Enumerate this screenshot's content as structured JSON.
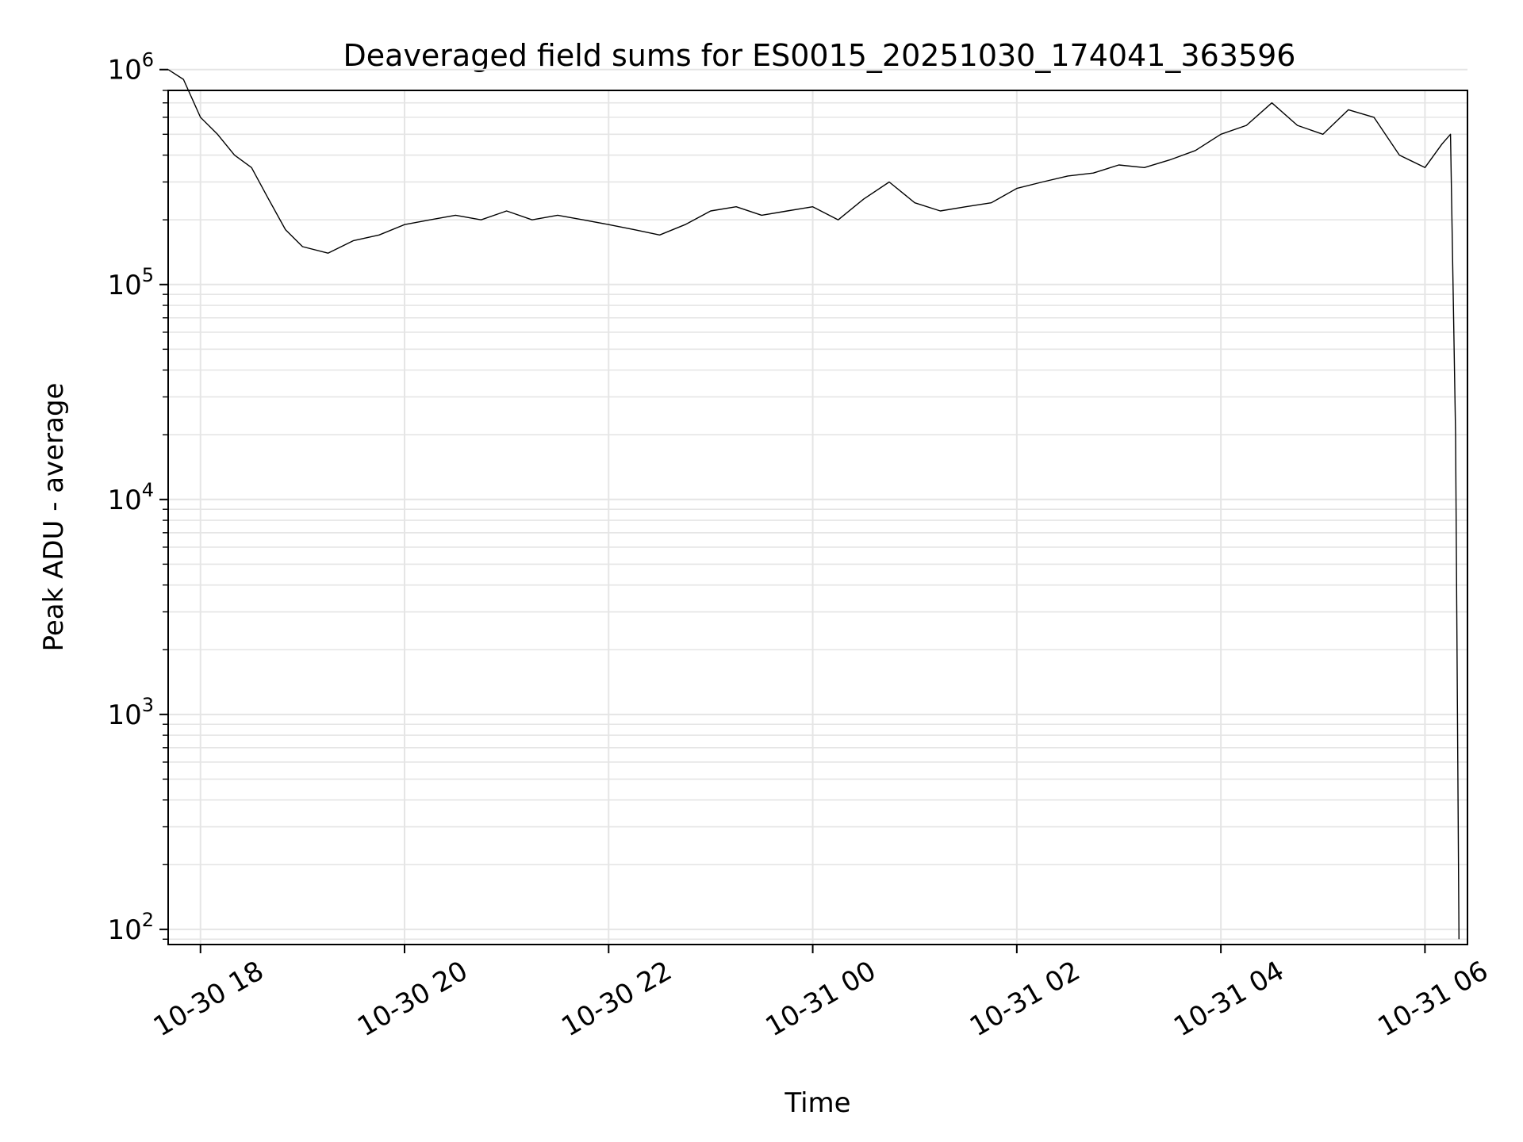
{
  "chart_data": {
    "type": "line",
    "title": "Deaveraged field sums for ES0015_20251030_174041_363596",
    "xlabel": "Time",
    "ylabel": "Peak ADU - average",
    "x_scale": "time",
    "y_scale": "log",
    "xlim": [
      "2025-10-30 17:41",
      "2025-10-31 06:25"
    ],
    "ylim": [
      85,
      800000
    ],
    "x_ticks": [
      {
        "value": "2025-10-30 18:00",
        "label": "10-30 18"
      },
      {
        "value": "2025-10-30 20:00",
        "label": "10-30 20"
      },
      {
        "value": "2025-10-30 22:00",
        "label": "10-30 22"
      },
      {
        "value": "2025-10-31 00:00",
        "label": "10-31 00"
      },
      {
        "value": "2025-10-31 02:00",
        "label": "10-31 02"
      },
      {
        "value": "2025-10-31 04:00",
        "label": "10-31 04"
      },
      {
        "value": "2025-10-31 06:00",
        "label": "10-31 06"
      }
    ],
    "y_ticks": [
      {
        "value": 100,
        "base": "10",
        "exp": "2"
      },
      {
        "value": 1000,
        "base": "10",
        "exp": "3"
      },
      {
        "value": 10000,
        "base": "10",
        "exp": "4"
      },
      {
        "value": 100000,
        "base": "10",
        "exp": "5"
      },
      {
        "value": 1000000,
        "base": "10",
        "exp": "6"
      }
    ],
    "grid": true,
    "grid_minor": true,
    "legend": "none",
    "line_color": "#000000",
    "grid_color": "#e5e5e5",
    "series": [
      {
        "x": [
          "2025-10-30 17:41",
          "2025-10-30 17:50",
          "2025-10-30 18:00",
          "2025-10-30 18:10",
          "2025-10-30 18:20",
          "2025-10-30 18:30",
          "2025-10-30 18:40",
          "2025-10-30 18:50",
          "2025-10-30 19:00",
          "2025-10-30 19:15",
          "2025-10-30 19:30",
          "2025-10-30 19:45",
          "2025-10-30 20:00",
          "2025-10-30 20:15",
          "2025-10-30 20:30",
          "2025-10-30 20:45",
          "2025-10-30 21:00",
          "2025-10-30 21:15",
          "2025-10-30 21:30",
          "2025-10-30 21:45",
          "2025-10-30 22:00",
          "2025-10-30 22:15",
          "2025-10-30 22:30",
          "2025-10-30 22:45",
          "2025-10-30 23:00",
          "2025-10-30 23:15",
          "2025-10-30 23:30",
          "2025-10-30 23:45",
          "2025-10-31 00:00",
          "2025-10-31 00:15",
          "2025-10-31 00:30",
          "2025-10-31 00:45",
          "2025-10-31 01:00",
          "2025-10-31 01:15",
          "2025-10-31 01:30",
          "2025-10-31 01:45",
          "2025-10-31 02:00",
          "2025-10-31 02:15",
          "2025-10-31 02:30",
          "2025-10-31 02:45",
          "2025-10-31 03:00",
          "2025-10-31 03:15",
          "2025-10-31 03:30",
          "2025-10-31 03:45",
          "2025-10-31 04:00",
          "2025-10-31 04:15",
          "2025-10-31 04:30",
          "2025-10-31 04:45",
          "2025-10-31 05:00",
          "2025-10-31 05:15",
          "2025-10-31 05:30",
          "2025-10-31 05:45",
          "2025-10-31 06:00",
          "2025-10-31 06:10",
          "2025-10-31 06:15",
          "2025-10-31 06:18",
          "2025-10-31 06:20"
        ],
        "y": [
          1000000,
          900000,
          600000,
          500000,
          400000,
          350000,
          250000,
          180000,
          150000,
          140000,
          160000,
          170000,
          190000,
          200000,
          210000,
          200000,
          220000,
          200000,
          210000,
          200000,
          190000,
          180000,
          170000,
          190000,
          220000,
          230000,
          210000,
          220000,
          230000,
          200000,
          250000,
          300000,
          240000,
          220000,
          230000,
          240000,
          280000,
          300000,
          320000,
          330000,
          360000,
          350000,
          380000,
          420000,
          500000,
          550000,
          700000,
          550000,
          500000,
          650000,
          600000,
          400000,
          350000,
          450000,
          500000,
          20000,
          90
        ]
      }
    ]
  }
}
